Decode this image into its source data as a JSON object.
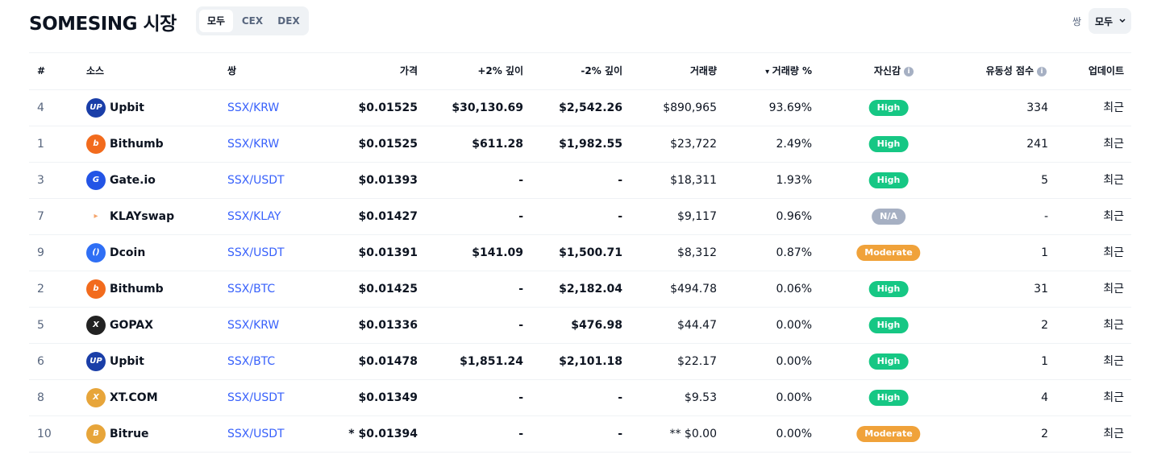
{
  "header": {
    "title": "SOMESING 시장",
    "tabs": [
      "모두",
      "CEX",
      "DEX"
    ],
    "pair_label": "쌍",
    "pair_select": "모두"
  },
  "table": {
    "columns": [
      "#",
      "소스",
      "쌍",
      "가격",
      "+2% 깊이",
      "-2% 깊이",
      "거래량",
      "거래량 %",
      "자신감",
      "유동성 점수",
      "업데이트"
    ],
    "rows": [
      [
        "4",
        "Upbit",
        "SSX/KRW",
        "$0.01525",
        "$30,130.69",
        "$2,542.26",
        "$890,965",
        "93.69%",
        "High",
        "334",
        "최근"
      ],
      [
        "1",
        "Bithumb",
        "SSX/KRW",
        "$0.01525",
        "$611.28",
        "$1,982.55",
        "$23,722",
        "2.49%",
        "High",
        "241",
        "최근"
      ],
      [
        "3",
        "Gate.io",
        "SSX/USDT",
        "$0.01393",
        "-",
        "-",
        "$18,311",
        "1.93%",
        "High",
        "5",
        "최근"
      ],
      [
        "7",
        "KLAYswap",
        "SSX/KLAY",
        "$0.01427",
        "-",
        "-",
        "$9,117",
        "0.96%",
        "N/A",
        "-",
        "최근"
      ],
      [
        "9",
        "Dcoin",
        "SSX/USDT",
        "$0.01391",
        "$141.09",
        "$1,500.71",
        "$8,312",
        "0.87%",
        "Moderate",
        "1",
        "최근"
      ],
      [
        "2",
        "Bithumb",
        "SSX/BTC",
        "$0.01425",
        "-",
        "$2,182.04",
        "$494.78",
        "0.06%",
        "High",
        "31",
        "최근"
      ],
      [
        "5",
        "GOPAX",
        "SSX/KRW",
        "$0.01336",
        "-",
        "$476.98",
        "$44.47",
        "0.00%",
        "High",
        "2",
        "최근"
      ],
      [
        "6",
        "Upbit",
        "SSX/BTC",
        "$0.01478",
        "$1,851.24",
        "$2,101.18",
        "$22.17",
        "0.00%",
        "High",
        "1",
        "최근"
      ],
      [
        "8",
        "XT.COM",
        "SSX/USDT",
        "$0.01349",
        "-",
        "-",
        "$9.53",
        "0.00%",
        "High",
        "4",
        "최근"
      ],
      [
        "10",
        "Bitrue",
        "SSX/USDT",
        "* $0.01394",
        "-",
        "-",
        "** $0.00",
        "0.00%",
        "Moderate",
        "2",
        "최근"
      ]
    ],
    "confidence_colors": [
      "#16c784",
      "#16c784",
      "#16c784",
      "#a6b0c3",
      "#f0a23a",
      "#16c784",
      "#16c784",
      "#16c784",
      "#16c784",
      "#f0a23a"
    ]
  }
}
